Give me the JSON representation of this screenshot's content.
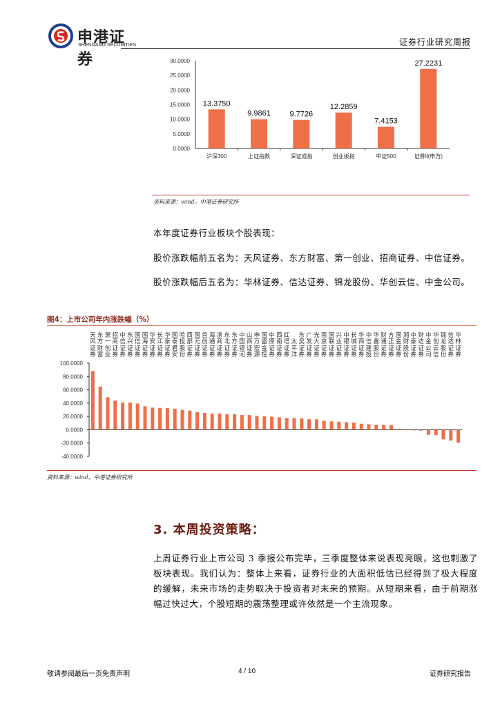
{
  "header": {
    "logo_cn": "申港证券",
    "logo_en": "SHENGANG SECURITIES",
    "report_type": "证券行业研究周报"
  },
  "colors": {
    "bar": "#ef6f48",
    "accent_line": "#c0392b",
    "section_title": "#6b1a10"
  },
  "chart_data": [
    {
      "type": "bar",
      "categories": [
        "沪深300",
        "上证指数",
        "深证成指",
        "创业板指",
        "中证500",
        "证券Ⅱ(申万)"
      ],
      "values": [
        13.375,
        9.9861,
        9.7726,
        12.2859,
        7.4153,
        27.2231
      ],
      "data_labels": [
        "13.3750",
        "9.9861",
        "9.7726",
        "12.2859",
        "7.4153",
        "27.2231"
      ],
      "yticks": [
        "0.0000",
        "5.0000",
        "10.0000",
        "15.0000",
        "20.0000",
        "25.0000",
        "30.0000"
      ],
      "ylim": [
        0,
        30
      ]
    },
    {
      "type": "bar",
      "title": "图4：上市公司年内涨跌幅（%）",
      "categories": [
        "天风证券",
        "东方财富",
        "第一创业",
        "招商证券",
        "中信证券",
        "东兴证券",
        "国信证券",
        "国海证券",
        "华安证券",
        "长江证券",
        "华泰证券",
        "国泰君安",
        "哈投股份",
        "西部证券",
        "国元证券",
        "首创证券",
        "海通证券",
        "浙商证券",
        "东北证券",
        "东方证券",
        "中国银河",
        "山西证券",
        "申万宏源",
        "国盛金控",
        "中原证券",
        "西南证券",
        "红塔证券",
        "太平洋",
        "东吴证券",
        "广发证券",
        "光大证券",
        "南京证券",
        "国联证券",
        "兴业证券",
        "中银证券",
        "长城证券",
        "华西证券",
        "中信建投",
        "华鑫股份",
        "财通证券",
        "方正证券",
        "国金证券",
        "湘财股份",
        "中泰证券",
        "财达证券",
        "中金公司",
        "华创云信",
        "锦龙股份",
        "信达证券",
        "华林证券"
      ],
      "values": [
        88.2,
        64.7,
        48.8,
        43.6,
        40.8,
        40.8,
        39.4,
        35.3,
        33.2,
        32.9,
        32.5,
        31.5,
        29.8,
        28.7,
        26.3,
        25.3,
        24.2,
        24.2,
        23.2,
        23.2,
        22.1,
        22.1,
        20.8,
        20.1,
        19.7,
        18.7,
        17.6,
        17.6,
        17.0,
        15.9,
        15.6,
        13.5,
        12.5,
        12.1,
        11.4,
        10.7,
        9.0,
        8.3,
        7.6,
        7.6,
        7.3,
        1.4,
        -0.3,
        -1.0,
        -1.4,
        -7.6,
        -8.0,
        -14.5,
        -16.3,
        -19.4
      ],
      "yticks": [
        "-40.0000",
        "-20.0000",
        "0.0000",
        "20.0000",
        "40.0000",
        "60.0000",
        "80.0000",
        "100.0000"
      ],
      "ylim": [
        -40,
        100
      ]
    }
  ],
  "source1": "资料来源：wind，中港证券研究所",
  "source2": "资料来源：wind，中港证券研究所",
  "paragraphs": {
    "intro": "本年度证券行业板块个股表现：",
    "top5": "股价涨跌幅前五名为：天风证券、东方财富、第一创业、招商证券、中信证券。",
    "bottom5": "股价涨跌幅后五名为：华林证券、信达证券、锦龙股份、华创云信、中金公司。"
  },
  "section3": {
    "title": "3. 本周投资策略：",
    "body": "上周证券行业上市公司 3 季报公布完毕，三季度整体来说表现亮眼，这也刺激了板块表现。我们认为：整体上来看，证券行业的大面积低估已经得到了极大程度的缓解，未来市场的走势取决于投资者对未来的预期。从短期来看，由于前期涨幅过快过大，个股短期的震荡整理或许依然是一个主流现象。"
  },
  "footer": {
    "disclaimer": "敬请参阅最后一页免责声明",
    "page": "4 / 10",
    "report": "证券研究报告"
  }
}
